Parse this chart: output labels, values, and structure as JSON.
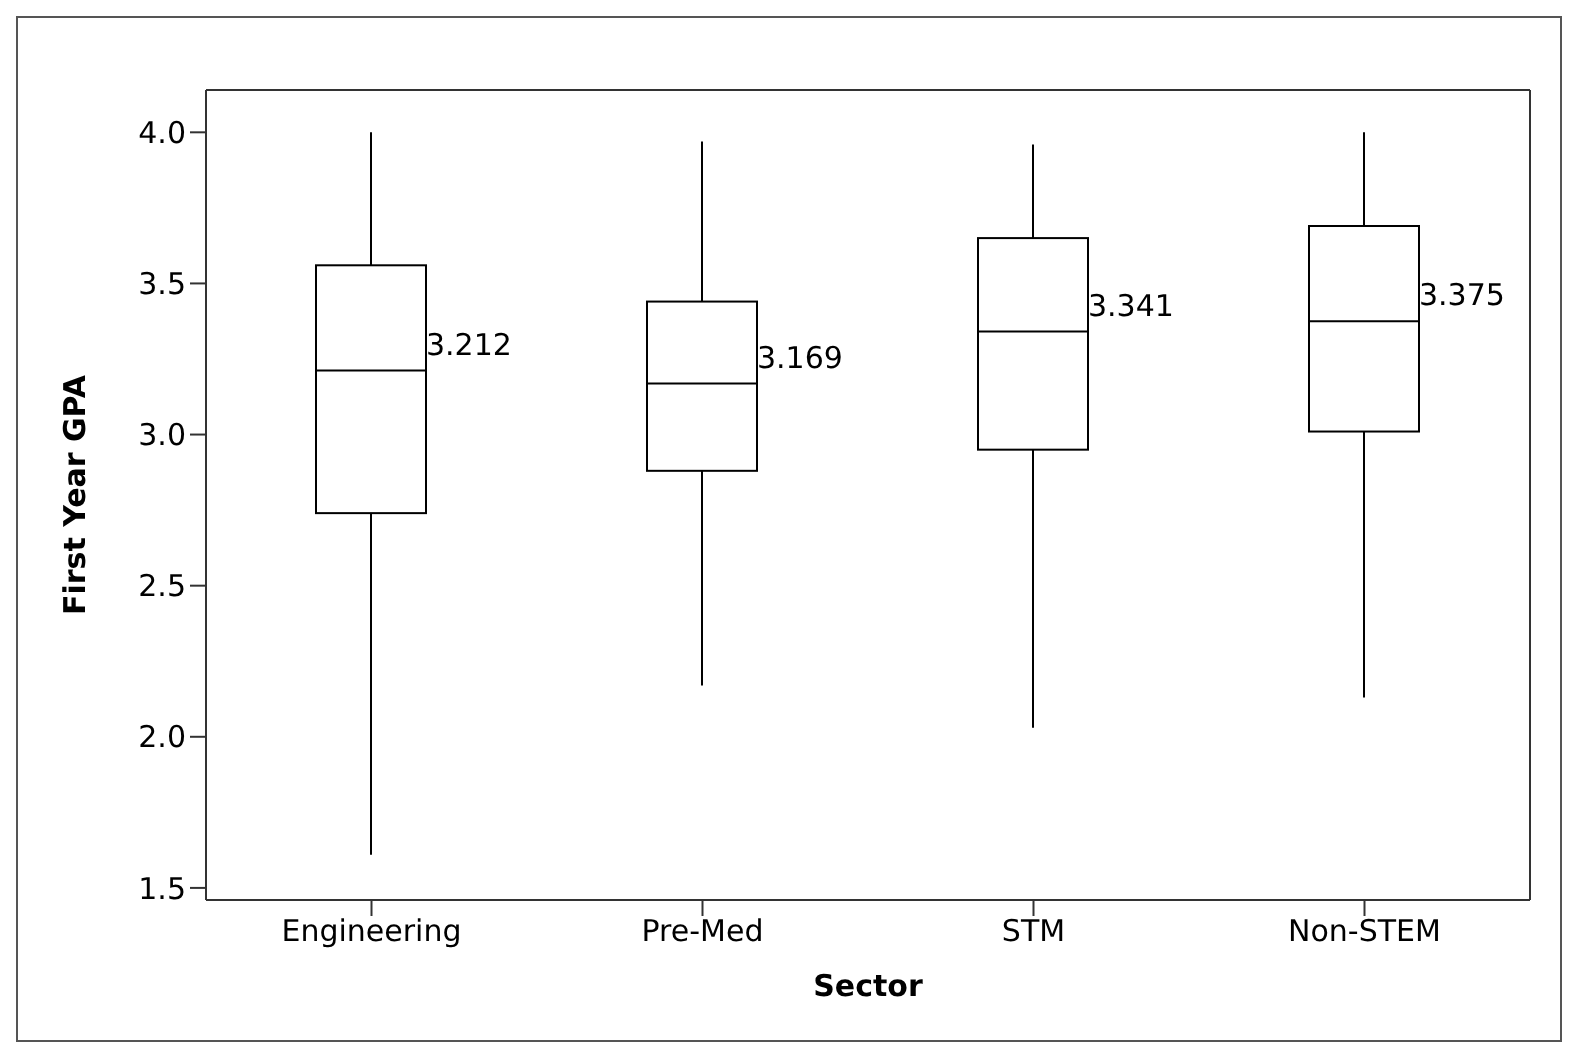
{
  "chart_data": {
    "type": "box",
    "xlabel": "Sector",
    "ylabel": "First Year GPA",
    "categories": [
      "Engineering",
      "Pre-Med",
      "STM",
      "Non-STEM"
    ],
    "boxes": [
      {
        "low": 1.61,
        "q1": 2.74,
        "median": 3.212,
        "q3": 3.56,
        "high": 4.0
      },
      {
        "low": 2.17,
        "q1": 2.88,
        "median": 3.169,
        "q3": 3.44,
        "high": 3.97
      },
      {
        "low": 2.03,
        "q1": 2.95,
        "median": 3.341,
        "q3": 3.65,
        "high": 3.96
      },
      {
        "low": 2.13,
        "q1": 3.01,
        "median": 3.375,
        "q3": 3.69,
        "high": 4.0
      }
    ],
    "color": "#000000",
    "annotations": [
      {
        "text": "3.212",
        "x": "Engineering",
        "y": 3.212
      },
      {
        "text": "3.169",
        "x": "Pre-Med",
        "y": 3.169
      },
      {
        "text": "3.341",
        "x": "STM",
        "y": 3.341
      },
      {
        "text": "3.375",
        "x": "Non-STEM",
        "y": 3.375
      }
    ],
    "ylim": [
      1.46,
      4.14
    ],
    "yticks": [
      {
        "value": 1.5,
        "label": "1.5"
      },
      {
        "value": 2,
        "label": "2.0"
      },
      {
        "value": 2.5,
        "label": "2.5"
      },
      {
        "value": 3,
        "label": "3.0"
      },
      {
        "value": 3.5,
        "label": "3.5"
      },
      {
        "value": 4,
        "label": "4.0"
      }
    ],
    "grid": false
  }
}
